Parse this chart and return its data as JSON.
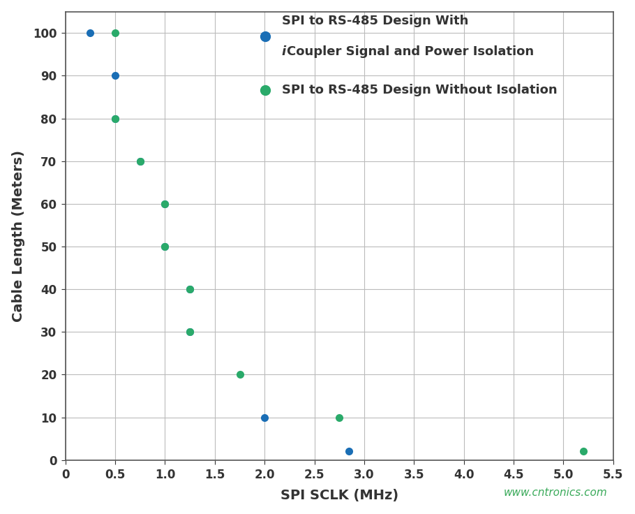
{
  "blue_x": [
    0.25,
    0.5,
    0.5,
    0.75,
    1.0,
    1.0,
    1.25,
    1.25,
    2.0,
    2.85
  ],
  "blue_y": [
    100,
    90,
    80,
    70,
    60,
    50,
    40,
    30,
    10,
    2
  ],
  "green_x": [
    0.5,
    0.5,
    0.75,
    1.0,
    1.0,
    1.25,
    1.25,
    1.75,
    2.75,
    5.2
  ],
  "green_y": [
    100,
    80,
    70,
    60,
    50,
    40,
    30,
    20,
    10,
    2
  ],
  "blue_color": "#1a6eb5",
  "green_color": "#2aaa6a",
  "xlabel": "SPI SCLK (MHz)",
  "ylabel": "Cable Length (Meters)",
  "xlim": [
    0,
    5.5
  ],
  "ylim": [
    0,
    105
  ],
  "xticks": [
    0.0,
    0.5,
    1.0,
    1.5,
    2.0,
    2.5,
    3.0,
    3.5,
    4.0,
    4.5,
    5.0,
    5.5
  ],
  "xtick_labels": [
    "0",
    "0.5",
    "1.0",
    "1.5",
    "2.0",
    "2.5",
    "3.0",
    "3.5",
    "4.0",
    "4.5",
    "5.0",
    "5.5"
  ],
  "yticks": [
    0,
    10,
    20,
    30,
    40,
    50,
    60,
    70,
    80,
    90,
    100
  ],
  "ytick_labels": [
    "0",
    "10",
    "20",
    "30",
    "40",
    "50",
    "60",
    "70",
    "80",
    "90",
    "100"
  ],
  "watermark": "www.cntronics.com",
  "watermark_color": "#3aaa5a",
  "bg_color": "#ffffff",
  "grid_color": "#bbbbbb",
  "spine_color": "#555555",
  "tick_color": "#333333",
  "label_color": "#333333",
  "marker_size": 8,
  "legend_blue_line1": "SPI to RS-485 Design With",
  "legend_blue_line2_italic": "i",
  "legend_blue_line2_rest": "Coupler Signal and Power Isolation",
  "legend_green": "SPI to RS-485 Design Without Isolation"
}
